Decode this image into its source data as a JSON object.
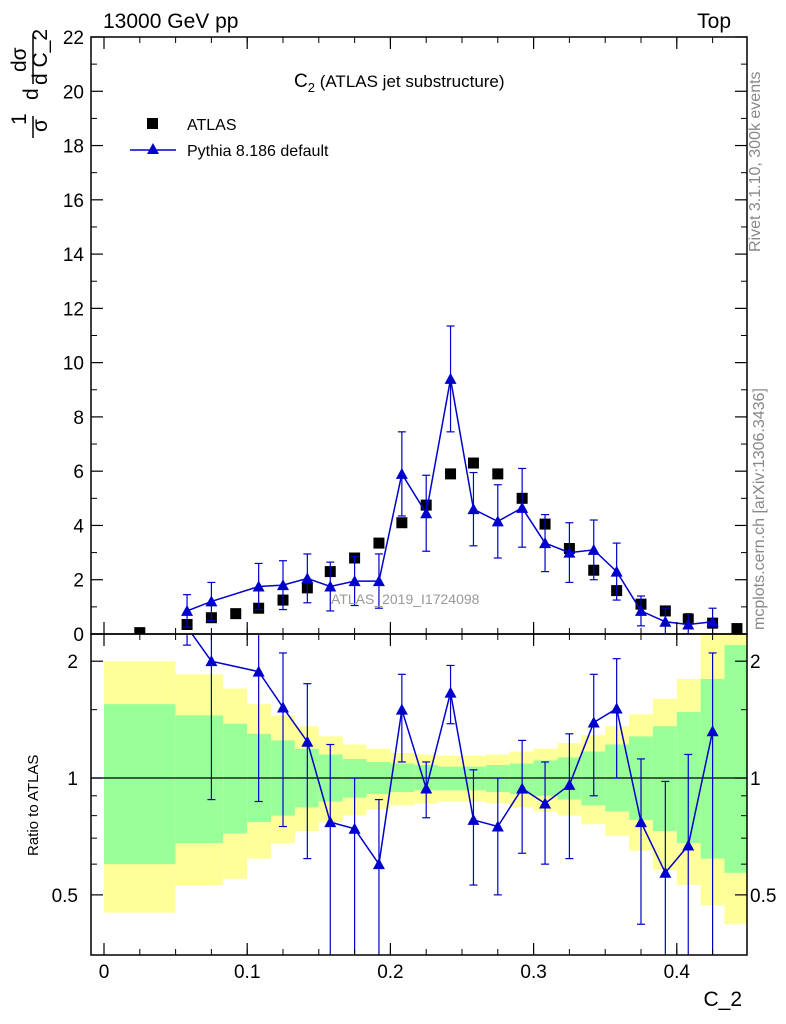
{
  "header": {
    "left": "13000 GeV pp",
    "right": "Top"
  },
  "side_labels": {
    "rivet": "Rivet 3.1.10,  300k events",
    "mcplots": "mcplots.cern.ch [arXiv:1306.3436]"
  },
  "chart_data": [
    {
      "type": "scatter",
      "panel": "main",
      "title": "C",
      "title_sub": "2",
      "title_rest": " (ATLAS jet substructure)",
      "ylabel_lines": [
        "dσ",
        "d C_2",
        "1",
        "σ",
        "d"
      ],
      "xlabel": "C_2",
      "xlim": [
        -0.01,
        0.455
      ],
      "ylim": [
        0,
        22
      ],
      "yticks": [
        0,
        2,
        4,
        6,
        8,
        10,
        12,
        14,
        16,
        18,
        20,
        22
      ],
      "ytick_labels": [
        "0",
        "2",
        "4",
        "6",
        "8",
        "10",
        "12",
        "14",
        "16",
        "18",
        "20",
        "22"
      ],
      "analysis_label": "ATLAS_2019_I1724098",
      "legend": [
        "ATLAS",
        "Pythia 8.186 default"
      ],
      "legend_position": "top-left",
      "series": [
        {
          "name": "ATLAS",
          "marker": "square",
          "color": "#000000",
          "x": [
            0.025,
            0.058,
            0.075,
            0.092,
            0.108,
            0.125,
            0.142,
            0.158,
            0.175,
            0.192,
            0.208,
            0.225,
            0.242,
            0.258,
            0.275,
            0.292,
            0.308,
            0.325,
            0.342,
            0.358,
            0.375,
            0.392,
            0.408,
            0.425,
            0.442
          ],
          "y": [
            0.05,
            0.35,
            0.6,
            0.75,
            0.95,
            1.25,
            1.7,
            2.3,
            2.8,
            3.35,
            4.1,
            4.75,
            5.9,
            6.3,
            5.9,
            5.0,
            4.05,
            3.15,
            2.35,
            1.6,
            1.1,
            0.85,
            0.55,
            0.4,
            0.2
          ]
        },
        {
          "name": "Pythia 8.186 default",
          "marker": "triangle",
          "color": "#0000cc",
          "x": [
            0.058,
            0.075,
            0.108,
            0.125,
            0.142,
            0.158,
            0.175,
            0.192,
            0.208,
            0.225,
            0.242,
            0.258,
            0.275,
            0.292,
            0.308,
            0.325,
            0.342,
            0.358,
            0.375,
            0.392,
            0.408,
            0.425
          ],
          "y": [
            0.85,
            1.2,
            1.75,
            1.8,
            2.05,
            1.75,
            1.95,
            1.95,
            5.9,
            4.45,
            9.4,
            4.6,
            4.15,
            4.65,
            3.35,
            3.0,
            3.1,
            2.3,
            0.85,
            0.45,
            0.35,
            0.45
          ],
          "yerr": [
            0.6,
            0.7,
            0.85,
            0.9,
            0.9,
            0.9,
            0.9,
            1.0,
            1.55,
            1.4,
            1.95,
            1.35,
            1.35,
            1.45,
            1.05,
            1.1,
            1.1,
            1.05,
            0.55,
            0.5,
            0.4,
            0.5
          ]
        }
      ]
    },
    {
      "type": "line",
      "panel": "ratio",
      "ylabel": "Ratio to ATLAS",
      "xlabel": "C_2",
      "ylim": [
        0.35,
        2.35
      ],
      "yticks": [
        0.5,
        1,
        2
      ],
      "ytick_labels": [
        "0.5",
        "1",
        "2"
      ],
      "xticks": [
        0,
        0.1,
        0.2,
        0.3,
        0.4
      ],
      "xtick_labels": [
        "0",
        "0.1",
        "0.2",
        "0.3",
        "0.4"
      ],
      "reference": 1,
      "bands": {
        "bin_edges": [
          0.0,
          0.05,
          0.0833,
          0.1,
          0.1167,
          0.1333,
          0.15,
          0.1667,
          0.1833,
          0.2,
          0.2167,
          0.2333,
          0.25,
          0.2667,
          0.2833,
          0.3,
          0.3167,
          0.3333,
          0.35,
          0.3667,
          0.3833,
          0.4,
          0.4167,
          0.4333,
          0.45
        ],
        "yellow_lo": [
          0.45,
          0.53,
          0.55,
          0.62,
          0.68,
          0.73,
          0.77,
          0.8,
          0.83,
          0.85,
          0.86,
          0.87,
          0.87,
          0.86,
          0.84,
          0.82,
          0.8,
          0.76,
          0.71,
          0.65,
          0.58,
          0.53,
          0.47,
          0.42
        ],
        "yellow_hi": [
          2.0,
          1.85,
          1.7,
          1.55,
          1.45,
          1.36,
          1.28,
          1.22,
          1.19,
          1.16,
          1.15,
          1.14,
          1.14,
          1.15,
          1.17,
          1.19,
          1.23,
          1.29,
          1.36,
          1.46,
          1.6,
          1.8,
          2.4,
          2.6
        ],
        "green_lo": [
          0.6,
          0.68,
          0.72,
          0.77,
          0.8,
          0.84,
          0.87,
          0.89,
          0.91,
          0.92,
          0.93,
          0.93,
          0.93,
          0.92,
          0.91,
          0.9,
          0.88,
          0.85,
          0.82,
          0.78,
          0.73,
          0.68,
          0.62,
          0.57
        ],
        "green_hi": [
          1.55,
          1.45,
          1.38,
          1.3,
          1.25,
          1.19,
          1.15,
          1.12,
          1.1,
          1.09,
          1.08,
          1.07,
          1.07,
          1.08,
          1.09,
          1.11,
          1.13,
          1.17,
          1.22,
          1.28,
          1.36,
          1.48,
          1.8,
          2.2
        ]
      },
      "series": [
        {
          "name": "Pythia 8.186 default",
          "color": "#0000cc",
          "x": [
            0.058,
            0.075,
            0.108,
            0.125,
            0.142,
            0.158,
            0.175,
            0.192,
            0.208,
            0.225,
            0.242,
            0.258,
            0.275,
            0.292,
            0.308,
            0.325,
            0.342,
            0.358,
            0.375,
            0.392,
            0.408,
            0.425
          ],
          "y": [
            2.45,
            2.0,
            1.88,
            1.52,
            1.24,
            0.77,
            0.74,
            0.6,
            1.5,
            0.94,
            1.66,
            0.78,
            0.75,
            0.94,
            0.86,
            0.96,
            1.39,
            1.51,
            0.77,
            0.57,
            0.67,
            1.32
          ],
          "ylo": [
            2.2,
            0.88,
            0.87,
            0.75,
            0.62,
            0.35,
            0.35,
            0.35,
            1.1,
            0.79,
            1.38,
            0.53,
            0.5,
            0.64,
            0.6,
            0.62,
            0.9,
            1.0,
            0.42,
            0.35,
            0.35,
            0.35
          ],
          "yhi": [
            2.45,
            2.45,
            2.45,
            2.1,
            1.75,
            1.22,
            1.0,
            0.88,
            1.85,
            1.1,
            1.95,
            1.05,
            1.0,
            1.25,
            1.1,
            1.3,
            1.85,
            2.03,
            1.12,
            0.98,
            1.15,
            2.1
          ]
        }
      ]
    }
  ]
}
